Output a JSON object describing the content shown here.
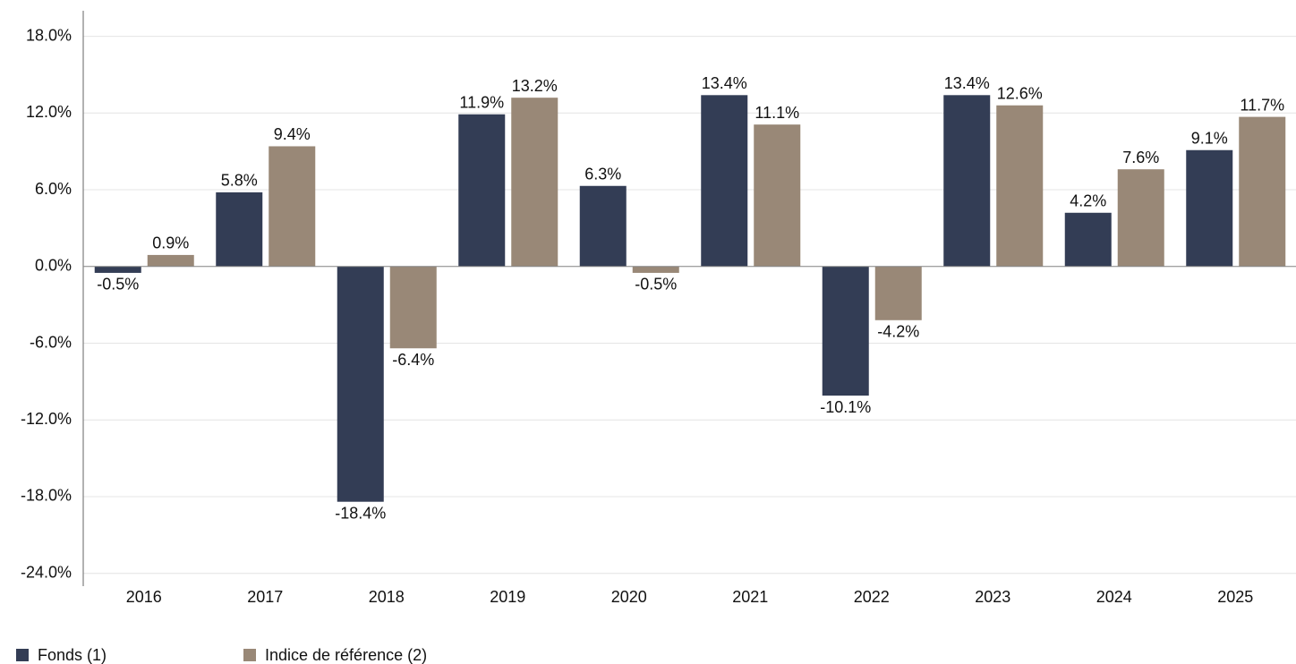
{
  "chart_data": {
    "type": "bar",
    "categories": [
      "2016",
      "2017",
      "2018",
      "2019",
      "2020",
      "2021",
      "2022",
      "2023",
      "2024",
      "2025"
    ],
    "series": [
      {
        "name": "Fonds (1)",
        "color": "#333d55",
        "values": [
          -0.5,
          5.8,
          -18.4,
          11.9,
          6.3,
          13.4,
          -10.1,
          13.4,
          4.2,
          9.1
        ],
        "value_labels": [
          "-0.5%",
          "5.8%",
          "-18.4%",
          "11.9%",
          "6.3%",
          "13.4%",
          "-10.1%",
          "13.4%",
          "4.2%",
          "9.1%"
        ]
      },
      {
        "name": "Indice de référence (2)",
        "color": "#998877",
        "values": [
          0.9,
          9.4,
          -6.4,
          13.2,
          -0.5,
          11.1,
          -4.2,
          12.6,
          7.6,
          11.7
        ],
        "value_labels": [
          "0.9%",
          "9.4%",
          "-6.4%",
          "13.2%",
          "-0.5%",
          "11.1%",
          "-4.2%",
          "12.6%",
          "7.6%",
          "11.7%"
        ]
      }
    ],
    "ylim": [
      -25,
      20
    ],
    "yticks": [
      {
        "value": -24,
        "label": "-24.0%"
      },
      {
        "value": -18,
        "label": "-18.0%"
      },
      {
        "value": -12,
        "label": "-12.0%"
      },
      {
        "value": -6,
        "label": "-6.0%"
      },
      {
        "value": 0,
        "label": "0.0%"
      },
      {
        "value": 6,
        "label": "6.0%"
      },
      {
        "value": 12,
        "label": "12.0%"
      },
      {
        "value": 18,
        "label": "18.0%"
      }
    ],
    "grid": true,
    "legend": "bottom-left"
  }
}
